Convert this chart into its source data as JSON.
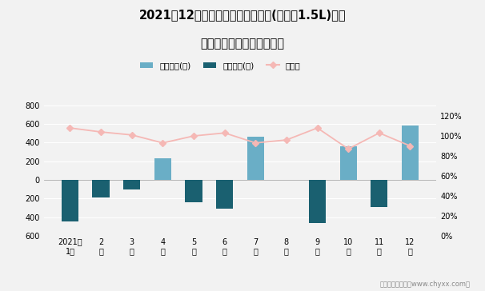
{
  "title_line1": "2021年12月新威驰旗下最畅销轿车(新威驰1.5L)近一",
  "title_line2": "年库存情况及产销率统计图",
  "months": [
    "2021年\n1月",
    "2\n月",
    "3\n月",
    "4\n月",
    "5\n月",
    "6\n月",
    "7\n月",
    "8\n月",
    "9\n月",
    "10\n月",
    "11\n月",
    "12\n月"
  ],
  "jianya": [
    0,
    0,
    0,
    230,
    0,
    0,
    460,
    0,
    0,
    360,
    0,
    580
  ],
  "qingcang": [
    -450,
    -185,
    -100,
    0,
    -240,
    -310,
    0,
    0,
    -460,
    0,
    -290,
    0
  ],
  "chanxiaolv": [
    1.08,
    1.04,
    1.01,
    0.93,
    1.0,
    1.03,
    0.93,
    0.96,
    1.08,
    0.87,
    1.03,
    0.9
  ],
  "bar_color_jianya": "#6aaec6",
  "bar_color_qingcang": "#1a6070",
  "line_color": "#f5b8b5",
  "ylim_left": [
    -600,
    900
  ],
  "ylim_right": [
    0.0,
    1.4
  ],
  "yticks_left": [
    -600,
    -400,
    -200,
    0,
    200,
    400,
    600,
    800
  ],
  "yticks_right": [
    0.0,
    0.2,
    0.4,
    0.6,
    0.8,
    1.0,
    1.2
  ],
  "footer": "制图：智研咨询（www.chyxx.com）",
  "legend_labels": [
    "积压库存(辆)",
    "清仓库存(辆)",
    "产销率"
  ],
  "background_color": "#f2f2f2"
}
